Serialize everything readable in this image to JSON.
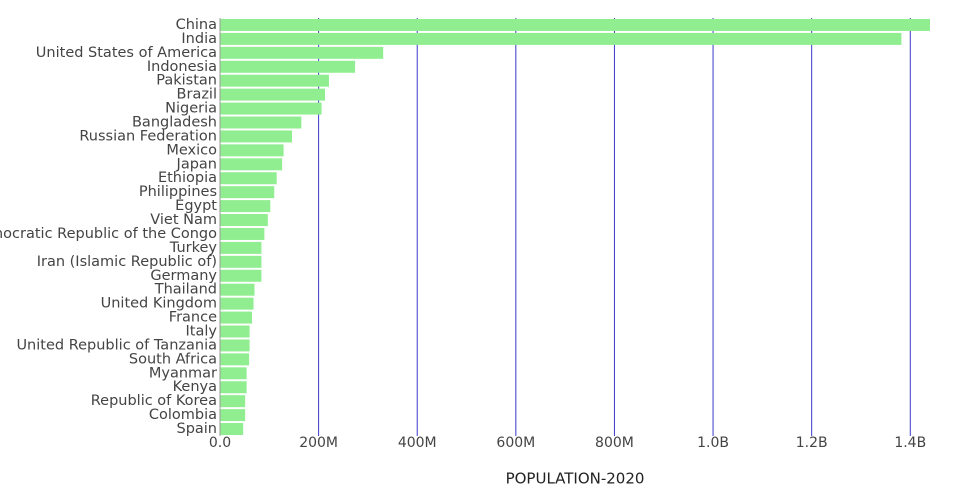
{
  "chart_data": {
    "type": "hbar",
    "x_label": "POPULATION-2020",
    "categories": [
      "China",
      "India",
      "United States of America",
      "Indonesia",
      "Pakistan",
      "Brazil",
      "Nigeria",
      "Bangladesh",
      "Russian Federation",
      "Mexico",
      "Japan",
      "Ethiopia",
      "Philippines",
      "Egypt",
      "Viet Nam",
      "Democratic Republic of the Congo",
      "Turkey",
      "Iran (Islamic Republic of)",
      "Germany",
      "Thailand",
      "United Kingdom",
      "France",
      "Italy",
      "United Republic of Tanzania",
      "South Africa",
      "Myanmar",
      "Kenya",
      "Republic of Korea",
      "Colombia",
      "Spain"
    ],
    "values": [
      1440000000,
      1382000000,
      331000000,
      274000000,
      221000000,
      213000000,
      206000000,
      165000000,
      146000000,
      129000000,
      126000000,
      115000000,
      110000000,
      102000000,
      97000000,
      90000000,
      84000000,
      84000000,
      84000000,
      70000000,
      68000000,
      65000000,
      60000000,
      60000000,
      59000000,
      54000000,
      54000000,
      51000000,
      51000000,
      47000000
    ],
    "color": "#90ee90",
    "grid_color": "#3a3acc",
    "xlim": [
      0,
      1440000000
    ],
    "xticks": [
      {
        "value": 0,
        "label": "0.0"
      },
      {
        "value": 200000000,
        "label": "200M"
      },
      {
        "value": 400000000,
        "label": "400M"
      },
      {
        "value": 600000000,
        "label": "600M"
      },
      {
        "value": 800000000,
        "label": "800M"
      },
      {
        "value": 1000000000,
        "label": "1.0B"
      },
      {
        "value": 1200000000,
        "label": "1.2B"
      },
      {
        "value": 1400000000,
        "label": "1.4B"
      }
    ],
    "grid": true
  }
}
